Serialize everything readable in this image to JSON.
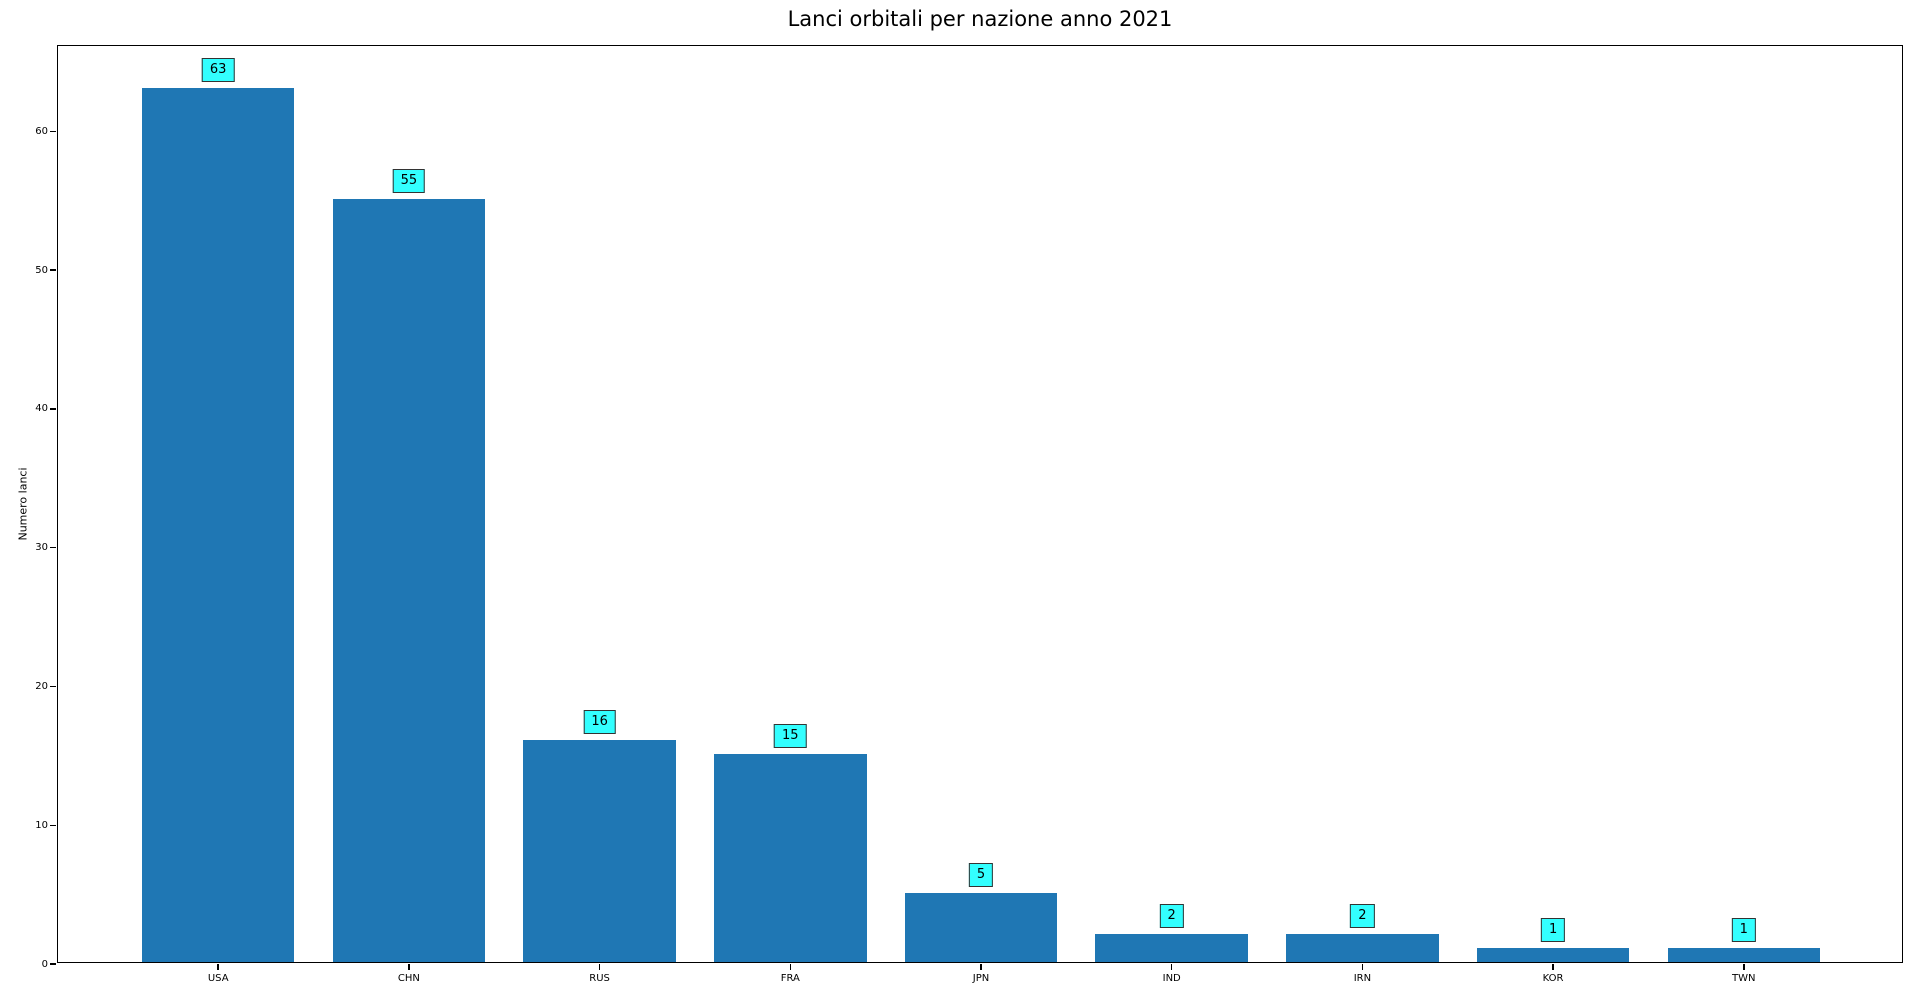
{
  "chart_data": {
    "type": "bar",
    "title": "Lanci orbitali per nazione anno 2021",
    "xlabel": "",
    "ylabel": "Numero lanci",
    "categories": [
      "USA",
      "CHN",
      "RUS",
      "FRA",
      "JPN",
      "IND",
      "IRN",
      "KOR",
      "TWN"
    ],
    "values": [
      63,
      55,
      16,
      15,
      5,
      2,
      2,
      1,
      1
    ],
    "bar_labels": [
      "63",
      "55",
      "16",
      "15",
      "5",
      "2",
      "2",
      "1",
      "1"
    ],
    "yticks": [
      0,
      10,
      20,
      30,
      40,
      50,
      60
    ],
    "ylim": [
      0,
      66.15
    ],
    "grid": false,
    "legend": "none",
    "colors": {
      "bar": "#1f77b4",
      "value_label_bg": "#33ffff",
      "value_label_border": "#333333",
      "axis": "#000000",
      "background": "#ffffff"
    }
  }
}
